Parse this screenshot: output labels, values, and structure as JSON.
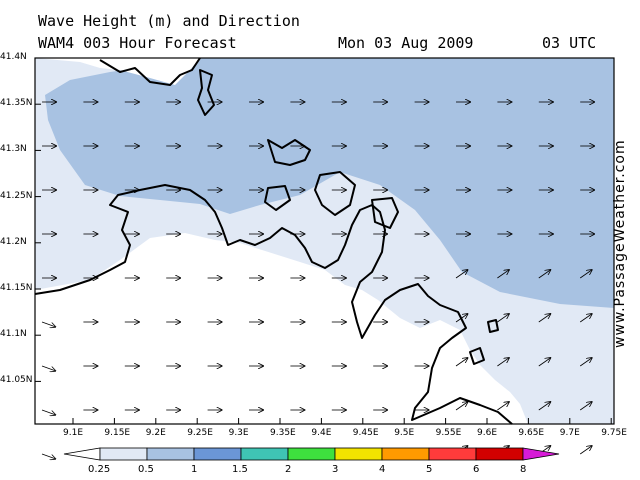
{
  "header": {
    "title_line1": "Wave Height (m) and Direction",
    "title_line2": "WAM4 003 Hour Forecast",
    "date": "Mon 03 Aug 2009",
    "time": "03 UTC"
  },
  "watermark": "www.PassageWeather.com",
  "map": {
    "lat_ticks": [
      "41.4N",
      "41.35N",
      "41.3N",
      "41.25N",
      "41.2N",
      "41.15N",
      "41.1N",
      "41.05N"
    ],
    "lon_ticks": [
      "9.1E",
      "9.15E",
      "9.2E",
      "9.25E",
      "9.3E",
      "9.35E",
      "9.4E",
      "9.45E",
      "9.5E",
      "9.55E",
      "9.6E",
      "9.65E",
      "9.7E",
      "9.75E"
    ],
    "colors": {
      "band_0_25": "#e1e9f5",
      "band_0_5_1": "#a8c2e2",
      "land": "#ffffff",
      "coast": "#000000"
    }
  },
  "legend": {
    "labels": [
      "0.25",
      "0.5",
      "1",
      "1.5",
      "2",
      "3",
      "4",
      "5",
      "6",
      "8"
    ],
    "colors": [
      "#ffffff",
      "#e1e9f5",
      "#a8c2e2",
      "#6b96d6",
      "#3fc4b4",
      "#3ee03e",
      "#f2e300",
      "#ff9a00",
      "#ff3b3b",
      "#d20000",
      "#d71bd7"
    ]
  }
}
